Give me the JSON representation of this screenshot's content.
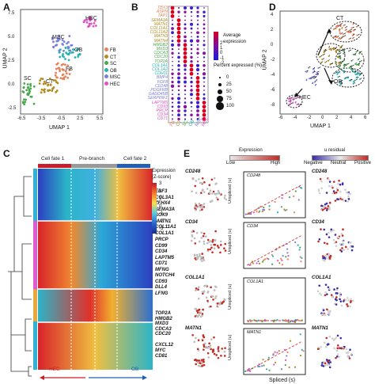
{
  "panels": {
    "A": {
      "label": "A",
      "xlabel": "UMAP 1",
      "ylabel": "UMAP 2",
      "xticks": [
        "-6.5",
        "-3.5",
        "-0.5",
        "2.5",
        "5.5"
      ],
      "yticks": [
        "7.5",
        "5.0",
        "2.5",
        "0.0",
        "-2.5"
      ],
      "annotations": [
        "HEC",
        "MSC",
        "OB",
        "FB",
        "SC",
        "CT"
      ],
      "legend": [
        {
          "name": "FB",
          "color": "#e8825a"
        },
        {
          "name": "CT",
          "color": "#b58b21"
        },
        {
          "name": "SC",
          "color": "#4aa84f"
        },
        {
          "name": "OB",
          "color": "#27b3b2"
        },
        {
          "name": "MSC",
          "color": "#7a7ed8"
        },
        {
          "name": "HEC",
          "color": "#e052c6"
        }
      ]
    },
    "B": {
      "label": "B",
      "genes": [
        {
          "name": "TBX3",
          "color": "#e8825a"
        },
        {
          "name": "ASPN",
          "color": "#e8825a"
        },
        {
          "name": "TAP1",
          "color": "#e8825a"
        },
        {
          "name": "SEMA3A",
          "color": "#b58b21"
        },
        {
          "name": "MATN1",
          "color": "#b58b21"
        },
        {
          "name": "COL11A1",
          "color": "#b58b21"
        },
        {
          "name": "COL11A2",
          "color": "#b58b21"
        },
        {
          "name": "MATN3",
          "color": "#b58b21"
        },
        {
          "name": "MATN4",
          "color": "#b58b21"
        },
        {
          "name": "HMGB2",
          "color": "#4aa84f"
        },
        {
          "name": "MXD3",
          "color": "#4aa84f"
        },
        {
          "name": "CDCA3",
          "color": "#4aa84f"
        },
        {
          "name": "CDC20",
          "color": "#4aa84f"
        },
        {
          "name": "TOP2A",
          "color": "#4aa84f"
        },
        {
          "name": "COL1A1",
          "color": "#27b3b2"
        },
        {
          "name": "COL1A2",
          "color": "#27b3b2"
        },
        {
          "name": "CDH11",
          "color": "#27b3b2"
        },
        {
          "name": "BMP4",
          "color": "#7a7ed8"
        },
        {
          "name": "FGF8",
          "color": "#7a7ed8"
        },
        {
          "name": "CD248",
          "color": "#7a7ed8"
        },
        {
          "name": "PDGFRB",
          "color": "#7a7ed8"
        },
        {
          "name": "GADD45B",
          "color": "#7a7ed8"
        },
        {
          "name": "SERPINF1",
          "color": "#7a7ed8"
        },
        {
          "name": "LAPTM5",
          "color": "#e052c6"
        },
        {
          "name": "CD93",
          "color": "#e052c6"
        },
        {
          "name": "PRCP",
          "color": "#e052c6"
        },
        {
          "name": "CD34",
          "color": "#e052c6"
        },
        {
          "name": "CD71",
          "color": "#e052c6"
        }
      ],
      "clusters": [
        {
          "name": "FB",
          "color": "#e8825a"
        },
        {
          "name": "CT",
          "color": "#b58b21"
        },
        {
          "name": "SC",
          "color": "#4aa84f"
        },
        {
          "name": "OB",
          "color": "#27b3b2"
        },
        {
          "name": "MSC",
          "color": "#7a7ed8"
        },
        {
          "name": "HEC",
          "color": "#e052c6"
        }
      ],
      "avg_expr_title": "Average expression",
      "avg_expr_ticks": [
        "2",
        "1",
        "0",
        "-1",
        "-2"
      ],
      "pct_title": "Percent expressed (%)",
      "pct_ticks": [
        "0",
        "25",
        "50",
        "75",
        "100"
      ]
    },
    "C": {
      "label": "C",
      "header_left": "Cell fate 1",
      "header_mid": "Pre-branch",
      "header_right": "Cell fate 2",
      "legend_title": "Expression (Z-score)",
      "legend_ticks": [
        "3",
        "2",
        "1",
        "0",
        "-1",
        "-2",
        "-3"
      ],
      "bottom_left": "HEC",
      "bottom_right": "OB",
      "genes": [
        "EBF3",
        "COL3A1",
        "ZFHX4",
        "SEMA3A",
        "SOX9",
        "MATN1",
        "COL11A1",
        "COL1A1",
        "PRCP",
        "CD99",
        "CD34",
        "LAPTM5",
        "CD71",
        "MFNG",
        "NOTCH4",
        "CD93",
        "DLL4",
        "LFNG",
        "TOP2A",
        "HMGB2",
        "MXD3",
        "CDCA3",
        "CDC20",
        "CXCL12",
        "MYC",
        "CD81"
      ]
    },
    "D": {
      "label": "D",
      "xlabel": "UMAP 1",
      "ylabel": "UMAP 2",
      "xticks": [
        "-6",
        "-4",
        "-2",
        "0",
        "2",
        "4",
        "6"
      ],
      "yticks": [
        "4",
        "2",
        "0",
        "-2",
        "-4",
        "-6",
        "-8"
      ],
      "annotations": [
        "CT",
        "OB",
        "HEC"
      ]
    },
    "E": {
      "label": "E",
      "expr_title": "Expression",
      "expr_low": "Low",
      "expr_high": "High",
      "resid_title": "u residual",
      "resid_neg": "Negative",
      "resid_neu": "Neutral",
      "resid_pos": "Positive",
      "xlabel": "Spliced (s)",
      "ylabel": "Unspliced (u)",
      "rows": [
        {
          "gene": "CD248"
        },
        {
          "gene": "CD34"
        },
        {
          "gene": "COL1A1"
        },
        {
          "gene": "MATN1"
        }
      ]
    }
  }
}
